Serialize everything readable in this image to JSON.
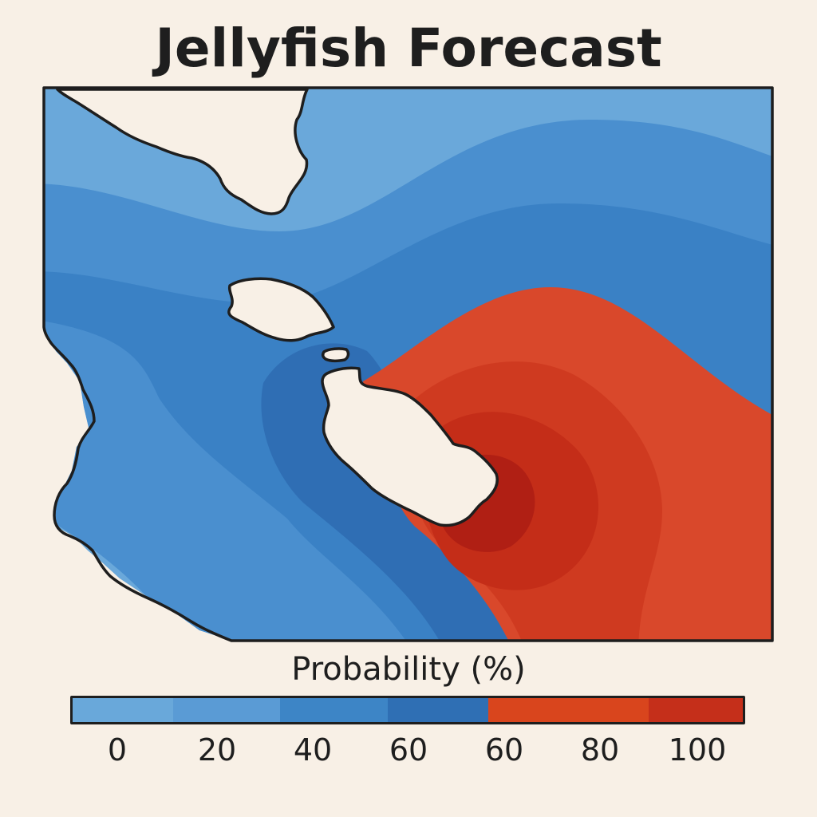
{
  "title": "Jellyfish Forecast",
  "legend": {
    "title": "Probability (%)",
    "tick_labels": [
      "0",
      "20",
      "40",
      "60",
      "60",
      "80",
      "100"
    ],
    "bands": [
      {
        "color": "#69a8da"
      },
      {
        "color": "#5a9bd5"
      },
      {
        "color": "#3d85c6"
      },
      {
        "color": "#2f6fb4"
      },
      {
        "color": "#d9451d"
      },
      {
        "color": "#c52f1a"
      }
    ]
  },
  "colors": {
    "sea_low": "#69a8da",
    "sea_mid": "#4a8fce",
    "sea_high": "#3578bd",
    "sea_peak": "#2f6db3",
    "hot_low": "#d9452a",
    "hot_mid": "#cc321b",
    "hot_peak": "#b21f14",
    "land": "#f8f0e6",
    "outline": "#1e1e1e"
  }
}
